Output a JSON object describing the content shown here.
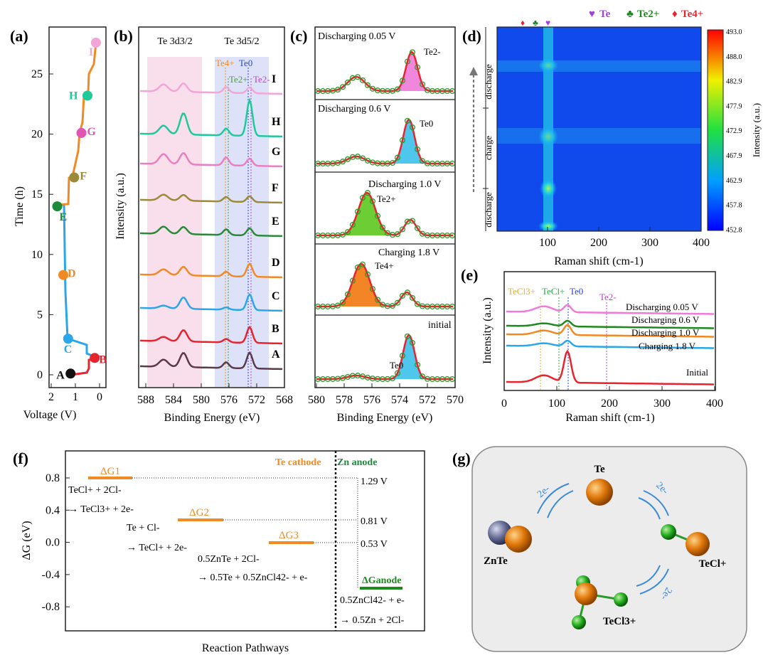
{
  "panels": {
    "a": "(a)",
    "b": "(b)",
    "c": "(c)",
    "d": "(d)",
    "e": "(e)",
    "f": "(f)",
    "g": "(g)"
  },
  "panel_a": {
    "xlabel": "Voltage (V)",
    "ylabel": "Time (h)",
    "xticks": [
      "2",
      "1",
      "0"
    ],
    "yticks": [
      "0",
      "5",
      "10",
      "15",
      "20",
      "25"
    ],
    "points": [
      {
        "label": "A",
        "color": "#111111"
      },
      {
        "label": "B",
        "color": "#e8232e"
      },
      {
        "label": "C",
        "color": "#2aa7e8"
      },
      {
        "label": "D",
        "color": "#f08a24"
      },
      {
        "label": "E",
        "color": "#1e8a3c"
      },
      {
        "label": "F",
        "color": "#9a8a3a"
      },
      {
        "label": "G",
        "color": "#e254b4"
      },
      {
        "label": "H",
        "color": "#1ec99a"
      },
      {
        "label": "I",
        "color": "#f2a6d8"
      }
    ],
    "chart_data": {
      "type": "line",
      "xlabel": "Voltage (V)",
      "ylabel": "Time (h)",
      "xlim": [
        2,
        -0.15
      ],
      "ylim": [
        -0.5,
        28.5
      ],
      "points": [
        [
          1.2,
          0.1
        ],
        [
          0.2,
          1.4
        ],
        [
          1.3,
          3.0
        ],
        [
          1.5,
          8.3
        ],
        [
          1.75,
          14.0
        ],
        [
          1.05,
          16.4
        ],
        [
          0.75,
          20.1
        ],
        [
          0.5,
          23.2
        ],
        [
          0.15,
          27.6
        ]
      ]
    }
  },
  "panel_b": {
    "xlabel": "Binding Energy (eV)",
    "ylabel": "Intensity (a.u.)",
    "xticks": [
      "588",
      "584",
      "580",
      "576",
      "572",
      "568"
    ],
    "region1": "Te 3d3/2",
    "region2": "Te 3d5/2",
    "lines": [
      "Te4+",
      "Te0",
      "Te2+",
      "Te2-"
    ],
    "curves": [
      "I",
      "H",
      "G",
      "F",
      "E",
      "D",
      "C",
      "B",
      "A"
    ]
  },
  "panel_c": {
    "xlabel": "Binding Energy (eV)",
    "xticks": [
      "580",
      "578",
      "576",
      "574",
      "572",
      "570"
    ],
    "subpanels": [
      {
        "label": "Discharging 0.05 V",
        "species": "Te2-",
        "fill": "#f07ad8"
      },
      {
        "label": "Discharging 0.6 V",
        "species": "Te0",
        "fill": "#3cc0ea"
      },
      {
        "label": "Discharging 1.0 V",
        "species": "Te2+",
        "fill": "#5cc81e"
      },
      {
        "label": "Charging 1.8 V",
        "species": "Te4+",
        "fill": "#f2780e"
      },
      {
        "label": "initial",
        "species": "Te0",
        "fill": "#3cc0ea"
      }
    ]
  },
  "panel_d": {
    "xlabel": "Raman shift (cm-1)",
    "xticks": [
      "100",
      "200",
      "300",
      "400"
    ],
    "legend": [
      "Te",
      "Te2+",
      "Te4+"
    ],
    "segments": [
      "discharge",
      "charge",
      "discharge"
    ],
    "colorbar_label": "Intensity (a.u.)",
    "colorbar_ticks": [
      "493.0",
      "488.0",
      "482.9",
      "477.9",
      "472.9",
      "467.9",
      "462.9",
      "457.8",
      "452.8"
    ]
  },
  "panel_e": {
    "xlabel": "Raman shift (cm-1)",
    "ylabel": "Intensity (a.u.)",
    "xticks": [
      "0",
      "100",
      "200",
      "300",
      "400"
    ],
    "lines": [
      "TeCl3+",
      "TeCl+",
      "Te0",
      "Te2-"
    ],
    "curves": [
      {
        "label": "Discharging 0.05 V",
        "color": "#f07ad8"
      },
      {
        "label": "Discharging 0.6 V",
        "color": "#1e8a1e"
      },
      {
        "label": "Discharging 1.0 V",
        "color": "#f08a24"
      },
      {
        "label": "Charging 1.8 V",
        "color": "#2aa7e8"
      },
      {
        "label": "Initial",
        "color": "#e8232e"
      }
    ]
  },
  "panel_f": {
    "xlabel": "Reaction Pathways",
    "ylabel": "ΔG (eV)",
    "yticks": [
      "0.8",
      "0.4",
      "0.0",
      "-0.4",
      "-0.8"
    ],
    "cathode": "Te cathode",
    "anode": "Zn anode",
    "dG1": "ΔG1",
    "dG2": "ΔG2",
    "dG3": "ΔG3",
    "dGa": "ΔGanode",
    "r1a": "TeCl+ + 2Cl-",
    "r1b": "→ TeCl3+ + 2e-",
    "r2a": "Te + Cl-",
    "r2b": "→ TeCl+ + 2e-",
    "r3a": "0.5ZnTe + 2Cl-",
    "r3b": "→ 0.5Te + 0.5ZnCl42- + e-",
    "r4a": "0.5ZnCl42- + e-",
    "r4b": "→ 0.5Zn + 2Cl-",
    "v1": "1.29 V",
    "v2": "0.81 V",
    "v3": "0.53 V"
  },
  "panel_g": {
    "te": "Te",
    "znte": "ZnTe",
    "tecl": "TeCl+",
    "tecl3": "TeCl3+",
    "e": "2e-"
  }
}
